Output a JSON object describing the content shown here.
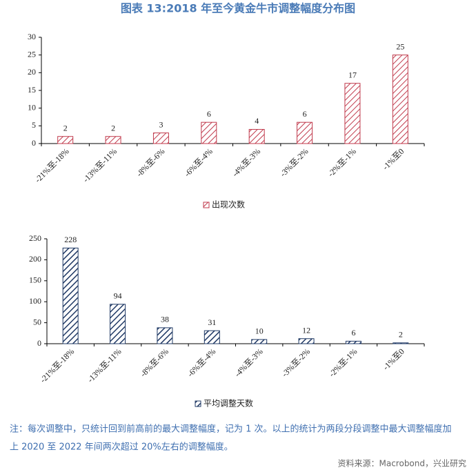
{
  "title": "图表 13:2018 年至今黄金牛市调整幅度分布图",
  "chart_data": [
    {
      "type": "bar",
      "categories": [
        "-21%至-18%",
        "-13%至-11%",
        "-8%至-6%",
        "-6%至-4%",
        "-4%至-3%",
        "-3%至-2%",
        "-2%至-1%",
        "-1%至0"
      ],
      "series": [
        {
          "name": "出现次数",
          "color": "#c0394b",
          "values": [
            2,
            2,
            3,
            6,
            4,
            6,
            17,
            25
          ]
        }
      ],
      "ylim": [
        0,
        30
      ],
      "yticks": [
        0,
        5,
        10,
        15,
        20,
        25,
        30
      ],
      "legend": "bottom"
    },
    {
      "type": "bar",
      "categories": [
        "-21%至-18%",
        "-13%至-11%",
        "-8%至-6%",
        "-6%至-4%",
        "-4%至-3%",
        "-3%至-2%",
        "-2%至-1%",
        "-1%至0"
      ],
      "series": [
        {
          "name": "平均调整天数",
          "color": "#1f3864",
          "values": [
            228,
            94,
            38,
            31,
            10,
            12,
            6,
            2
          ]
        }
      ],
      "ylim": [
        0,
        250
      ],
      "yticks": [
        0,
        50,
        100,
        150,
        200,
        250
      ],
      "legend": "bottom"
    }
  ],
  "note": [
    "注：每次调整中，只统计回到前高前的最大调整幅度，记为 1 次。以上的统计为两段分段调整中最大调整幅度加",
    "上 2020 至 2022 年间两次超过 20%左右的调整幅度。"
  ],
  "source": "资料来源：Macrobond，兴业研究"
}
